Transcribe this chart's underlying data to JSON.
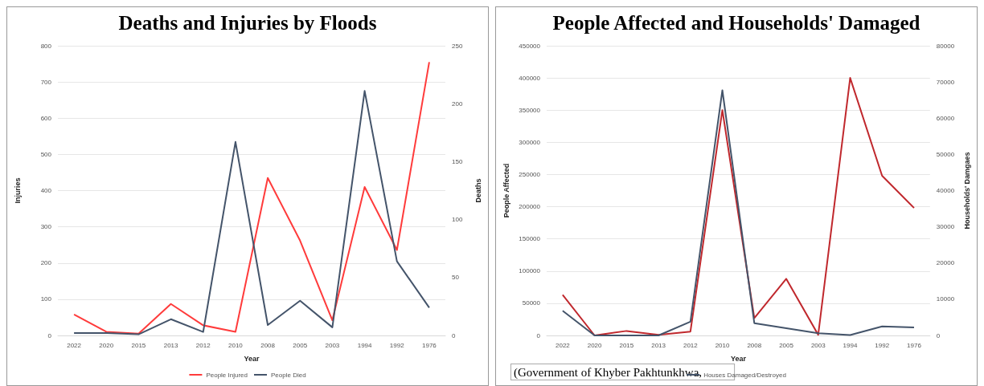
{
  "chart_data": [
    {
      "type": "line",
      "title": "Deaths and Injuries by Floods",
      "xlabel": "Year",
      "ylabel": "Injuries",
      "y2label": "Deaths",
      "categories": [
        "2022",
        "2020",
        "2015",
        "2013",
        "2012",
        "2010",
        "2008",
        "2005",
        "2003",
        "1994",
        "1992",
        "1976"
      ],
      "series": [
        {
          "name": "People Injured",
          "color": "#ff3b3b",
          "values": [
            58,
            10,
            5,
            87,
            28,
            10,
            435,
            262,
            42,
            410,
            236,
            755
          ]
        },
        {
          "name": "People Died",
          "color": "#44546a",
          "axis": "y2",
          "values": [
            2,
            2,
            1,
            14,
            3,
            167,
            9,
            30,
            7,
            211,
            64,
            24
          ]
        }
      ],
      "ylim": [
        0,
        800
      ],
      "yticks": [
        0,
        100,
        200,
        300,
        400,
        500,
        600,
        700,
        800
      ],
      "y2lim": [
        0,
        250
      ],
      "y2ticks": [
        0,
        50,
        100,
        150,
        200,
        250
      ],
      "grid": "y",
      "legend": "bottom",
      "marker": "none"
    },
    {
      "type": "line",
      "title": "People Affected and Households' Damaged",
      "xlabel": "Year",
      "ylabel": "People Affected",
      "y2label": "Households' Damgaes",
      "categories": [
        "2022",
        "2020",
        "2015",
        "2013",
        "2012",
        "2010",
        "2008",
        "2005",
        "2003",
        "1994",
        "1992",
        "1976"
      ],
      "series": [
        {
          "color": "#c0282d",
          "values": [
            63000,
            0,
            7000,
            1000,
            6000,
            350000,
            27000,
            88000,
            1000,
            400000,
            248000,
            198000
          ]
        },
        {
          "name": "Houses Damaged/Destroyed",
          "color": "#44546a",
          "axis": "y2",
          "values": [
            6800,
            0,
            0,
            0,
            3800,
            67700,
            3400,
            2000,
            600,
            100,
            2500,
            2200
          ]
        }
      ],
      "ylim": [
        0,
        450000
      ],
      "yticks": [
        0,
        50000,
        100000,
        150000,
        200000,
        250000,
        300000,
        350000,
        400000,
        450000
      ],
      "y2lim": [
        0,
        80000
      ],
      "y2ticks": [
        0,
        10000,
        20000,
        30000,
        40000,
        50000,
        60000,
        70000,
        80000
      ],
      "grid": "y",
      "legend": "bottom",
      "marker": "none",
      "annotations": [
        "(Government of Khyber Pakhtunkhwa,"
      ]
    }
  ]
}
